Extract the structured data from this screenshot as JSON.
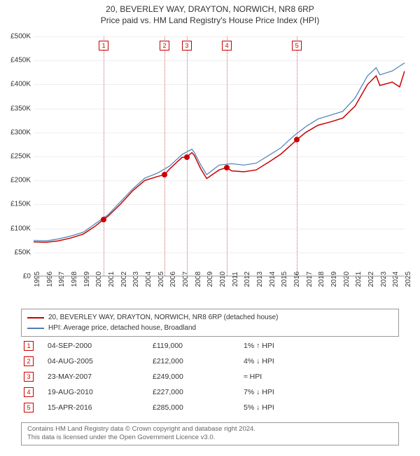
{
  "title_line1": "20, BEVERLEY WAY, DRAYTON, NORWICH, NR8 6RP",
  "title_line2": "Price paid vs. HM Land Registry's House Price Index (HPI)",
  "chart": {
    "ylim": [
      0,
      500000
    ],
    "ytick_step": 50000,
    "yticks": [
      "£0",
      "£50K",
      "£100K",
      "£150K",
      "£200K",
      "£250K",
      "£300K",
      "£350K",
      "£400K",
      "£450K",
      "£500K"
    ],
    "xstart_year": 1995,
    "xend_year": 2025,
    "xticks": [
      "1995",
      "1996",
      "1997",
      "1998",
      "1999",
      "2000",
      "2001",
      "2002",
      "2003",
      "2004",
      "2005",
      "2006",
      "2007",
      "2008",
      "2009",
      "2010",
      "2011",
      "2012",
      "2013",
      "2014",
      "2015",
      "2016",
      "2017",
      "2018",
      "2019",
      "2020",
      "2021",
      "2022",
      "2023",
      "2024",
      "2025"
    ],
    "series_red_color": "#cc0000",
    "series_blue_color": "#4a7fb5",
    "series_red_width": 1.5,
    "series_blue_width": 1.2,
    "grid_color": "#eeeeee",
    "background_color": "#ffffff",
    "series_red": [
      [
        1995,
        72000
      ],
      [
        1996,
        71000
      ],
      [
        1997,
        74000
      ],
      [
        1998,
        80000
      ],
      [
        1999,
        88000
      ],
      [
        2000,
        105000
      ],
      [
        2000.67,
        119000
      ],
      [
        2001,
        125000
      ],
      [
        2002,
        150000
      ],
      [
        2003,
        178000
      ],
      [
        2004,
        200000
      ],
      [
        2005,
        208000
      ],
      [
        2005.59,
        212000
      ],
      [
        2006,
        224000
      ],
      [
        2007,
        248000
      ],
      [
        2007.39,
        249000
      ],
      [
        2007.8,
        258000
      ],
      [
        2008,
        252000
      ],
      [
        2008.5,
        225000
      ],
      [
        2009,
        204000
      ],
      [
        2010,
        222000
      ],
      [
        2010.63,
        227000
      ],
      [
        2011,
        220000
      ],
      [
        2012,
        218000
      ],
      [
        2013,
        222000
      ],
      [
        2014,
        238000
      ],
      [
        2015,
        255000
      ],
      [
        2016,
        278000
      ],
      [
        2016.29,
        285000
      ],
      [
        2017,
        300000
      ],
      [
        2018,
        315000
      ],
      [
        2019,
        322000
      ],
      [
        2020,
        330000
      ],
      [
        2021,
        355000
      ],
      [
        2022,
        400000
      ],
      [
        2022.7,
        418000
      ],
      [
        2023,
        398000
      ],
      [
        2024,
        405000
      ],
      [
        2024.6,
        395000
      ],
      [
        2025,
        428000
      ]
    ],
    "series_blue": [
      [
        1995,
        75000
      ],
      [
        1996,
        74000
      ],
      [
        1997,
        78000
      ],
      [
        1998,
        84000
      ],
      [
        1999,
        92000
      ],
      [
        2000,
        110000
      ],
      [
        2001,
        128000
      ],
      [
        2002,
        155000
      ],
      [
        2003,
        182000
      ],
      [
        2004,
        205000
      ],
      [
        2005,
        215000
      ],
      [
        2006,
        230000
      ],
      [
        2007,
        254000
      ],
      [
        2007.8,
        265000
      ],
      [
        2008,
        258000
      ],
      [
        2008.5,
        233000
      ],
      [
        2009,
        212000
      ],
      [
        2010,
        232000
      ],
      [
        2011,
        235000
      ],
      [
        2012,
        232000
      ],
      [
        2013,
        236000
      ],
      [
        2014,
        252000
      ],
      [
        2015,
        268000
      ],
      [
        2016,
        292000
      ],
      [
        2017,
        312000
      ],
      [
        2018,
        328000
      ],
      [
        2019,
        336000
      ],
      [
        2020,
        344000
      ],
      [
        2021,
        372000
      ],
      [
        2022,
        418000
      ],
      [
        2022.7,
        435000
      ],
      [
        2023,
        420000
      ],
      [
        2024,
        428000
      ],
      [
        2025,
        445000
      ]
    ],
    "event_markers": [
      {
        "num": "1",
        "year": 2000.67,
        "price": 119000
      },
      {
        "num": "2",
        "year": 2005.59,
        "price": 212000
      },
      {
        "num": "3",
        "year": 2007.39,
        "price": 249000
      },
      {
        "num": "4",
        "year": 2010.63,
        "price": 227000
      },
      {
        "num": "5",
        "year": 2016.29,
        "price": 285000
      }
    ]
  },
  "legend": {
    "item1": "20, BEVERLEY WAY, DRAYTON, NORWICH, NR8 6RP (detached house)",
    "item2": "HPI: Average price, detached house, Broadland"
  },
  "events": [
    {
      "num": "1",
      "date": "04-SEP-2000",
      "price": "£119,000",
      "diff": "1% ↑ HPI"
    },
    {
      "num": "2",
      "date": "04-AUG-2005",
      "price": "£212,000",
      "diff": "4% ↓ HPI"
    },
    {
      "num": "3",
      "date": "23-MAY-2007",
      "price": "£249,000",
      "diff": "≈ HPI"
    },
    {
      "num": "4",
      "date": "19-AUG-2010",
      "price": "£227,000",
      "diff": "7% ↓ HPI"
    },
    {
      "num": "5",
      "date": "15-APR-2016",
      "price": "£285,000",
      "diff": "5% ↓ HPI"
    }
  ],
  "footer": {
    "line1": "Contains HM Land Registry data © Crown copyright and database right 2024.",
    "line2": "This data is licensed under the Open Government Licence v3.0."
  }
}
